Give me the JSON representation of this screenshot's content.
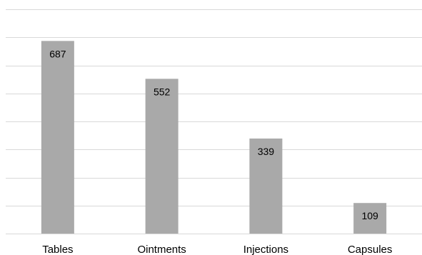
{
  "chart_data": {
    "type": "bar",
    "title": "",
    "xlabel": "",
    "ylabel": "",
    "categories": [
      "Tables",
      "Ointments",
      "Injections",
      "Capsules"
    ],
    "values": [
      687,
      552,
      339,
      109
    ],
    "ylim": [
      0,
      800
    ],
    "ytick_step": 100,
    "grid": true,
    "show_y_tick_labels": false,
    "data_labels": true,
    "colors": {
      "bar": "#a9a9a9",
      "grid": "#d9d9d9",
      "text": "#000000"
    }
  }
}
